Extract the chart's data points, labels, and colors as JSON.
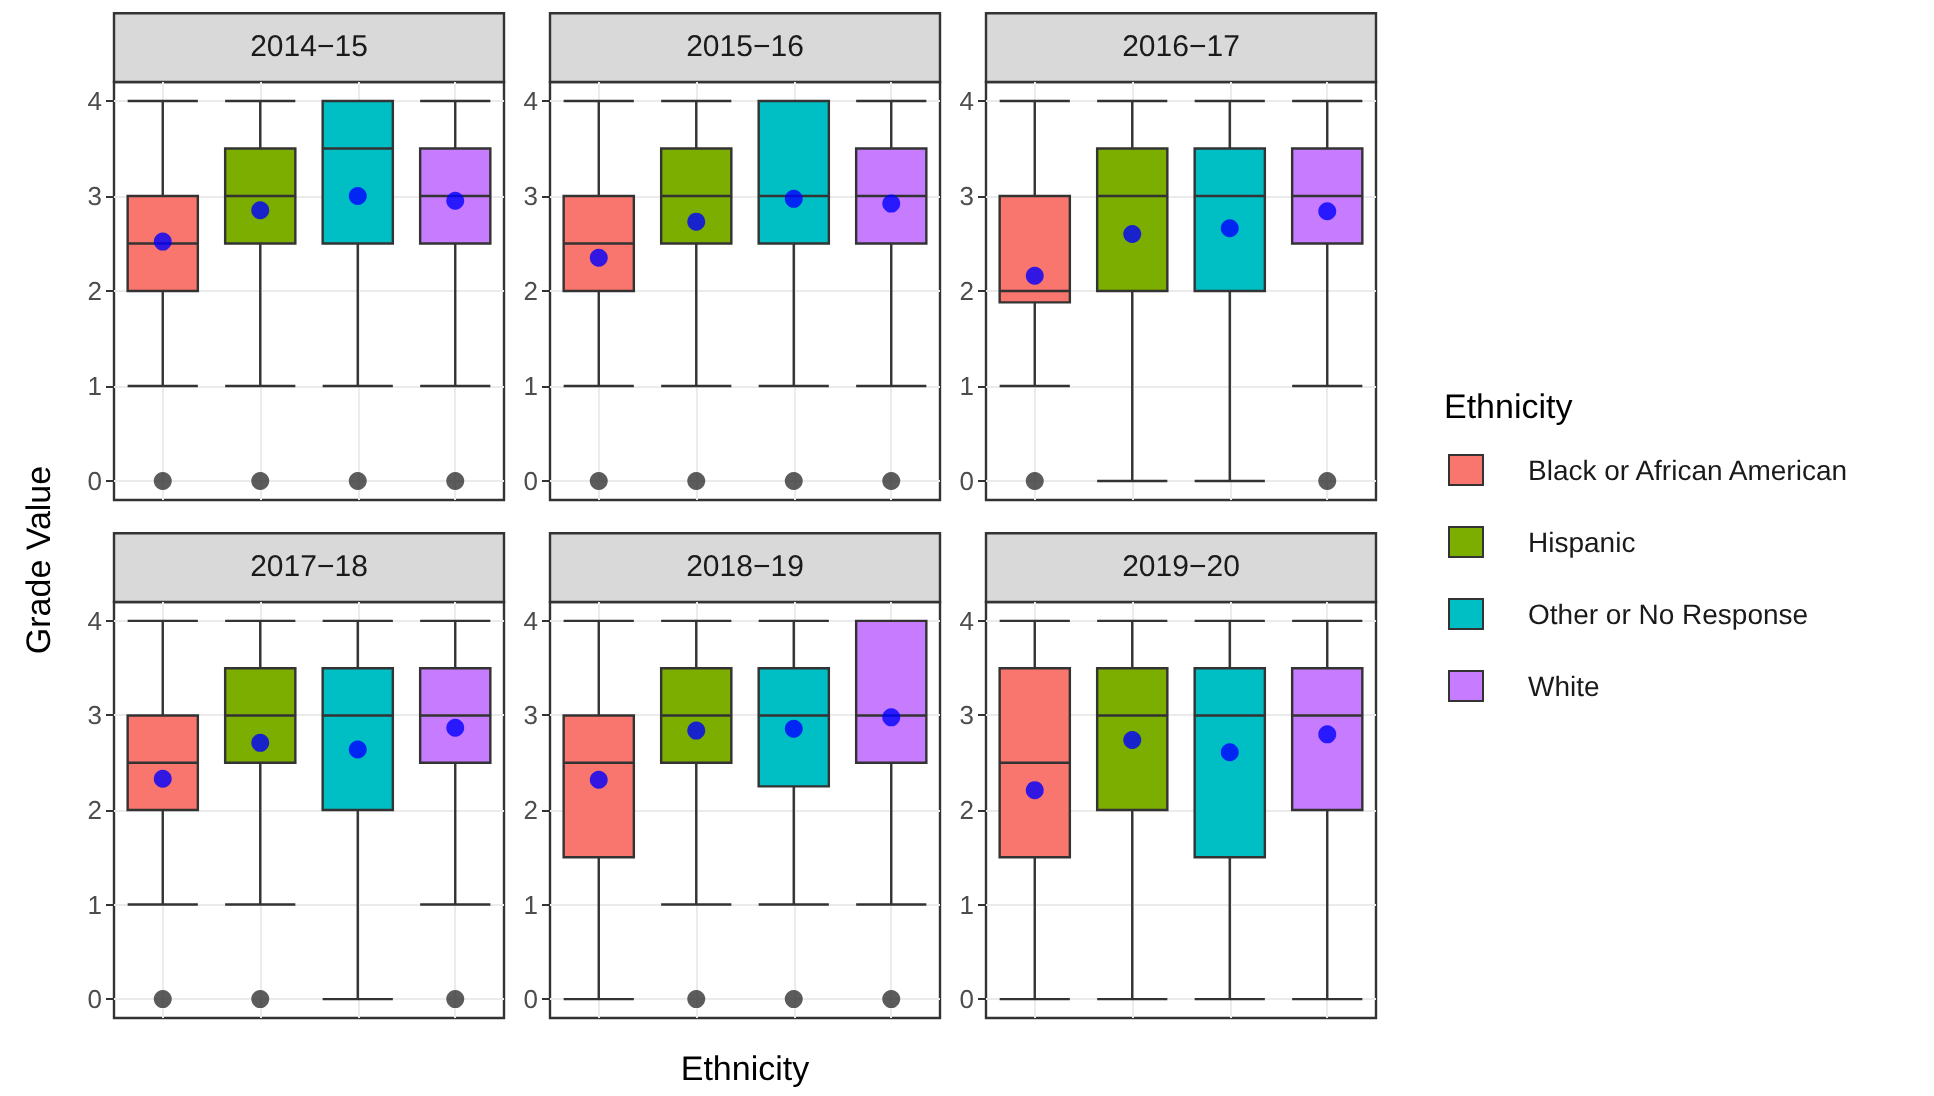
{
  "chart_data": [
    {
      "type": "box",
      "title": "2014−15",
      "ylabel": "Grade Value",
      "legend": "right",
      "grid": true,
      "ylim": [
        -0.2,
        4.2
      ],
      "yticks": [
        0,
        1,
        2,
        3,
        4
      ],
      "categories": [
        null,
        null,
        null,
        null
      ],
      "series": [
        {
          "name": "Black or African American",
          "color": "#f8766d",
          "boxes": [
            {
              "low": 1,
              "q1": 2,
              "median": 2.5,
              "q3": 3,
              "high": 4,
              "mean": 2.52,
              "outliers": [
                0
              ]
            },
            null,
            null,
            null
          ]
        },
        {
          "name": "Hispanic",
          "color": "#7cae00",
          "boxes": [
            null,
            {
              "low": 1,
              "q1": 2.5,
              "median": 3,
              "q3": 3.5,
              "high": 4,
              "mean": 2.85,
              "outliers": [
                0
              ]
            },
            null,
            null
          ]
        },
        {
          "name": "Other or No Response",
          "color": "#00bfc4",
          "boxes": [
            null,
            null,
            {
              "low": 1,
              "q1": 2.5,
              "median": 3.5,
              "q3": 4,
              "high": 4,
              "mean": 3.0,
              "outliers": [
                0
              ]
            },
            null
          ]
        },
        {
          "name": "White",
          "color": "#c77cff",
          "boxes": [
            null,
            null,
            null,
            {
              "low": 1,
              "q1": 2.5,
              "median": 3,
              "q3": 3.5,
              "high": 4,
              "mean": 2.95,
              "outliers": [
                0
              ]
            }
          ]
        }
      ]
    },
    {
      "type": "box",
      "title": "2015−16",
      "grid": true,
      "ylim": [
        -0.2,
        4.2
      ],
      "yticks": [
        0,
        1,
        2,
        3,
        4
      ],
      "categories": [
        null,
        null,
        null,
        null
      ],
      "series": [
        {
          "name": "Black or African American",
          "color": "#f8766d",
          "boxes": [
            {
              "low": 1,
              "q1": 2,
              "median": 2.5,
              "q3": 3,
              "high": 4,
              "mean": 2.35,
              "outliers": [
                0
              ]
            },
            null,
            null,
            null
          ]
        },
        {
          "name": "Hispanic",
          "color": "#7cae00",
          "boxes": [
            null,
            {
              "low": 1,
              "q1": 2.5,
              "median": 3,
              "q3": 3.5,
              "high": 4,
              "mean": 2.73,
              "outliers": [
                0
              ]
            },
            null,
            null
          ]
        },
        {
          "name": "Other or No Response",
          "color": "#00bfc4",
          "boxes": [
            null,
            null,
            {
              "low": 1,
              "q1": 2.5,
              "median": 3,
              "q3": 4,
              "high": 4,
              "mean": 2.97,
              "outliers": [
                0
              ]
            },
            null
          ]
        },
        {
          "name": "White",
          "color": "#c77cff",
          "boxes": [
            null,
            null,
            null,
            {
              "low": 1,
              "q1": 2.5,
              "median": 3,
              "q3": 3.5,
              "high": 4,
              "mean": 2.92,
              "outliers": [
                0
              ]
            }
          ]
        }
      ]
    },
    {
      "type": "box",
      "title": "2016−17",
      "grid": true,
      "ylim": [
        -0.2,
        4.2
      ],
      "yticks": [
        0,
        1,
        2,
        3,
        4
      ],
      "categories": [
        null,
        null,
        null,
        null
      ],
      "series": [
        {
          "name": "Black or African American",
          "color": "#f8766d",
          "boxes": [
            {
              "low": 1,
              "q1": 1.88,
              "median": 2,
              "q3": 3,
              "high": 4,
              "mean": 2.16,
              "outliers": [
                0
              ]
            },
            null,
            null,
            null
          ]
        },
        {
          "name": "Hispanic",
          "color": "#7cae00",
          "boxes": [
            null,
            {
              "low": 0,
              "q1": 2,
              "median": 3,
              "q3": 3.5,
              "high": 4,
              "mean": 2.6
            },
            null,
            null
          ]
        },
        {
          "name": "Other or No Response",
          "color": "#00bfc4",
          "boxes": [
            null,
            null,
            {
              "low": 0,
              "q1": 2,
              "median": 3,
              "q3": 3.5,
              "high": 4,
              "mean": 2.66
            },
            null
          ]
        },
        {
          "name": "White",
          "color": "#c77cff",
          "boxes": [
            null,
            null,
            null,
            {
              "low": 1,
              "q1": 2.5,
              "median": 3,
              "q3": 3.5,
              "high": 4,
              "mean": 2.84,
              "outliers": [
                0
              ]
            }
          ]
        }
      ]
    },
    {
      "type": "box",
      "title": "2017−18",
      "grid": true,
      "ylim": [
        -0.2,
        4.2
      ],
      "yticks": [
        0,
        1,
        2,
        3,
        4
      ],
      "categories": [
        null,
        null,
        null,
        null
      ],
      "series": [
        {
          "name": "Black or African American",
          "color": "#f8766d",
          "boxes": [
            {
              "low": 1,
              "q1": 2,
              "median": 2.5,
              "q3": 3,
              "high": 4,
              "mean": 2.33,
              "outliers": [
                0
              ]
            },
            null,
            null,
            null
          ]
        },
        {
          "name": "Hispanic",
          "color": "#7cae00",
          "boxes": [
            null,
            {
              "low": 1,
              "q1": 2.5,
              "median": 3,
              "q3": 3.5,
              "high": 4,
              "mean": 2.71,
              "outliers": [
                0
              ]
            },
            null,
            null
          ]
        },
        {
          "name": "Other or No Response",
          "color": "#00bfc4",
          "boxes": [
            null,
            null,
            {
              "low": 0,
              "q1": 2,
              "median": 3,
              "q3": 3.5,
              "high": 4,
              "mean": 2.64
            },
            null
          ]
        },
        {
          "name": "White",
          "color": "#c77cff",
          "boxes": [
            null,
            null,
            null,
            {
              "low": 1,
              "q1": 2.5,
              "median": 3,
              "q3": 3.5,
              "high": 4,
              "mean": 2.87,
              "outliers": [
                0
              ]
            }
          ]
        }
      ]
    },
    {
      "type": "box",
      "title": "2018−19",
      "xlabel": "Ethnicity",
      "legend_title": "Ethnicity",
      "grid": true,
      "ylim": [
        -0.2,
        4.2
      ],
      "yticks": [
        0,
        1,
        2,
        3,
        4
      ],
      "categories": [
        null,
        null,
        null,
        null
      ],
      "series": [
        {
          "name": "Black or African American",
          "color": "#f8766d",
          "boxes": [
            {
              "low": 0,
              "q1": 1.5,
              "median": 2.5,
              "q3": 3,
              "high": 4,
              "mean": 2.32
            },
            null,
            null,
            null
          ]
        },
        {
          "name": "Hispanic",
          "color": "#7cae00",
          "boxes": [
            null,
            {
              "low": 1,
              "q1": 2.5,
              "median": 3,
              "q3": 3.5,
              "high": 4,
              "mean": 2.84,
              "outliers": [
                0
              ]
            },
            null,
            null
          ]
        },
        {
          "name": "Other or No Response",
          "color": "#00bfc4",
          "boxes": [
            null,
            null,
            {
              "low": 1,
              "q1": 2.25,
              "median": 3,
              "q3": 3.5,
              "high": 4,
              "mean": 2.86,
              "outliers": [
                0
              ]
            },
            null
          ]
        },
        {
          "name": "White",
          "color": "#c77cff",
          "boxes": [
            null,
            null,
            null,
            {
              "low": 1,
              "q1": 2.5,
              "median": 3,
              "q3": 4,
              "high": 4,
              "mean": 2.98,
              "outliers": [
                0
              ]
            }
          ]
        }
      ]
    },
    {
      "type": "box",
      "title": "2019−20",
      "grid": true,
      "ylim": [
        -0.2,
        4.2
      ],
      "yticks": [
        0,
        1,
        2,
        3,
        4
      ],
      "categories": [
        null,
        null,
        null,
        null
      ],
      "series": [
        {
          "name": "Black or African American",
          "color": "#f8766d",
          "boxes": [
            {
              "low": 0,
              "q1": 1.5,
              "median": 2.5,
              "q3": 3.5,
              "high": 4,
              "mean": 2.21
            },
            null,
            null,
            null
          ]
        },
        {
          "name": "Hispanic",
          "color": "#7cae00",
          "boxes": [
            null,
            {
              "low": 0,
              "q1": 2,
              "median": 3,
              "q3": 3.5,
              "high": 4,
              "mean": 2.74
            },
            null,
            null
          ]
        },
        {
          "name": "Other or No Response",
          "color": "#00bfc4",
          "boxes": [
            null,
            null,
            {
              "low": 0,
              "q1": 1.5,
              "median": 3,
              "q3": 3.5,
              "high": 4,
              "mean": 2.61
            },
            null
          ]
        },
        {
          "name": "White",
          "color": "#c77cff",
          "boxes": [
            null,
            null,
            null,
            {
              "low": 0,
              "q1": 2,
              "median": 3,
              "q3": 3.5,
              "high": 4,
              "mean": 2.8
            }
          ]
        }
      ]
    }
  ]
}
